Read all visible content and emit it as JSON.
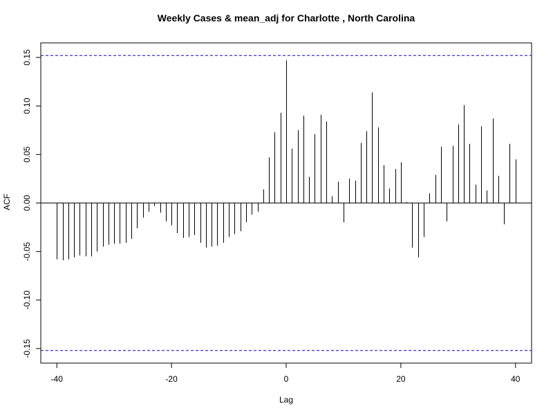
{
  "chart_data": {
    "type": "bar",
    "title": "Weekly Cases & mean_adj for Charlotte , North Carolina",
    "xlabel": "Lag",
    "ylabel": "ACF",
    "xlim": [
      -42.8,
      42.8
    ],
    "ylim": [
      -0.165,
      0.165
    ],
    "x_ticks": [
      -40,
      -20,
      0,
      20,
      40
    ],
    "x_tick_labels": [
      "-40",
      "-20",
      "0",
      "20",
      "40"
    ],
    "y_ticks": [
      -0.15,
      -0.1,
      -0.05,
      0.0,
      0.05,
      0.1,
      0.15
    ],
    "y_tick_labels": [
      "-0.15",
      "-0.10",
      "-0.05",
      "0.00",
      "0.05",
      "0.10",
      "0.15"
    ],
    "confidence_bounds": [
      0.152,
      -0.152
    ],
    "colors": {
      "bars": "#000000",
      "bounds": "#0000cc",
      "zero_line": "#000000"
    },
    "lags": [
      -40,
      -39,
      -38,
      -37,
      -36,
      -35,
      -34,
      -33,
      -32,
      -31,
      -30,
      -29,
      -28,
      -27,
      -26,
      -25,
      -24,
      -23,
      -22,
      -21,
      -20,
      -19,
      -18,
      -17,
      -16,
      -15,
      -14,
      -13,
      -12,
      -11,
      -10,
      -9,
      -8,
      -7,
      -6,
      -5,
      -4,
      -3,
      -2,
      -1,
      0,
      1,
      2,
      3,
      4,
      5,
      6,
      7,
      8,
      9,
      10,
      11,
      12,
      13,
      14,
      15,
      16,
      17,
      18,
      19,
      20,
      21,
      22,
      23,
      24,
      25,
      26,
      27,
      28,
      29,
      30,
      31,
      32,
      33,
      34,
      35,
      36,
      37,
      38,
      39,
      40
    ],
    "values": [
      -0.058,
      -0.059,
      -0.058,
      -0.056,
      -0.054,
      -0.055,
      -0.055,
      -0.05,
      -0.045,
      -0.043,
      -0.042,
      -0.042,
      -0.041,
      -0.037,
      -0.026,
      -0.015,
      -0.009,
      -0.003,
      -0.01,
      -0.019,
      -0.023,
      -0.031,
      -0.036,
      -0.035,
      -0.033,
      -0.041,
      -0.046,
      -0.045,
      -0.044,
      -0.041,
      -0.035,
      -0.032,
      -0.029,
      -0.02,
      -0.012,
      -0.009,
      0.014,
      0.047,
      0.073,
      0.093,
      0.147,
      0.056,
      0.075,
      0.09,
      0.027,
      0.071,
      0.091,
      0.084,
      0.007,
      0.022,
      -0.02,
      0.025,
      0.023,
      0.062,
      0.074,
      0.114,
      0.078,
      0.039,
      0.015,
      0.035,
      0.042,
      0.001,
      -0.046,
      -0.056,
      -0.035,
      0.01,
      0.029,
      0.058,
      -0.019,
      0.059,
      0.081,
      0.101,
      0.061,
      0.019,
      0.079,
      0.013,
      0.087,
      0.028,
      -0.022,
      0.061,
      0.045
    ]
  }
}
